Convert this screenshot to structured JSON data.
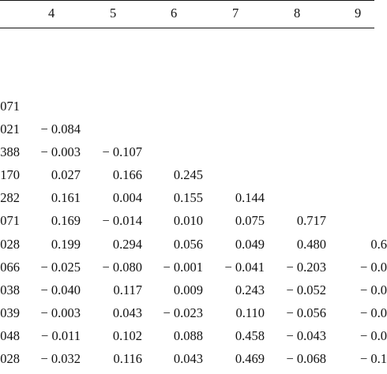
{
  "table": {
    "column_headers": [
      "4",
      "5",
      "6",
      "7",
      "8",
      "9"
    ],
    "rows": [
      [
        "071"
      ],
      [
        "021",
        "− 0.084"
      ],
      [
        "388",
        "− 0.003",
        "− 0.107"
      ],
      [
        "170",
        "0.027",
        "0.166",
        "0.245"
      ],
      [
        "282",
        "0.161",
        "0.004",
        "0.155",
        "0.144"
      ],
      [
        "071",
        "0.169",
        "− 0.014",
        "0.010",
        "0.075",
        "0.717"
      ],
      [
        "028",
        "0.199",
        "0.294",
        "0.056",
        "0.049",
        "0.480",
        "0.6"
      ],
      [
        "066",
        "− 0.025",
        "− 0.080",
        "− 0.001",
        "− 0.041",
        "− 0.203",
        "− 0.0"
      ],
      [
        "038",
        "− 0.040",
        "0.117",
        "0.009",
        "0.243",
        "− 0.052",
        "− 0.0"
      ],
      [
        "039",
        "− 0.003",
        "0.043",
        "− 0.023",
        "0.110",
        "− 0.056",
        "− 0.0"
      ],
      [
        "048",
        "− 0.011",
        "0.102",
        "0.088",
        "0.458",
        "− 0.043",
        "− 0.0"
      ],
      [
        "028",
        "− 0.032",
        "0.116",
        "0.043",
        "0.469",
        "− 0.068",
        "− 0.1"
      ]
    ]
  }
}
